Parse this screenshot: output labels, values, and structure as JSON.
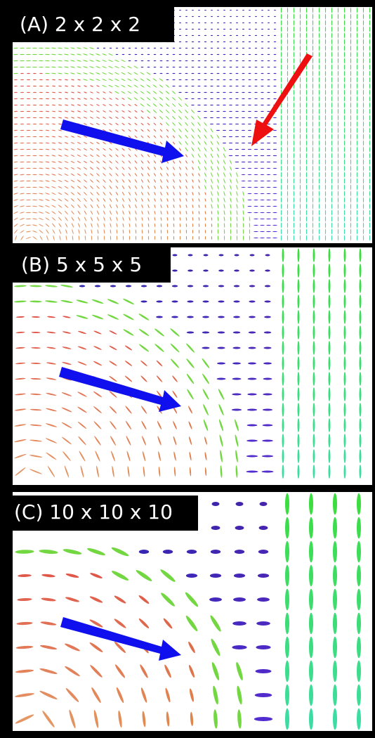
{
  "panels": [
    {
      "label": "(A) 2 x 2 x 2"
    },
    {
      "label": "(B) 5 x 5 x 5"
    },
    {
      "label": "(C) 10 x 10 x 10"
    }
  ]
}
